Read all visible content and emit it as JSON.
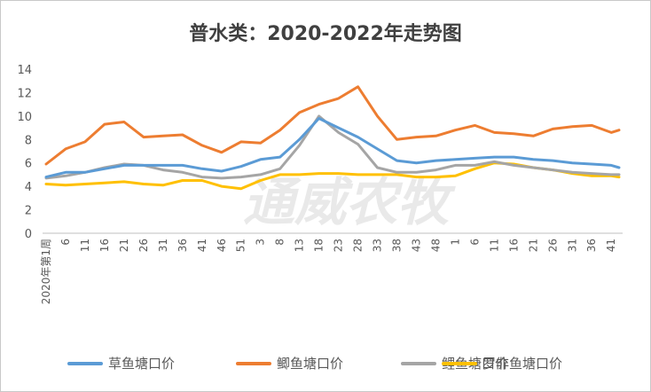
{
  "chart_data": {
    "type": "line",
    "title": "普水类：2020-2022年走势图",
    "xlabel": "",
    "ylabel": "",
    "ylim": [
      0,
      14
    ],
    "yticks": [
      0,
      2,
      4,
      6,
      8,
      10,
      12,
      14
    ],
    "grid": false,
    "legend_position": "bottom",
    "x_tick_labels": [
      "2020年第1周",
      "6",
      "11",
      "16",
      "21",
      "26",
      "31",
      "36",
      "41",
      "46",
      "51",
      "3",
      "8",
      "13",
      "18",
      "23",
      "28",
      "33",
      "38",
      "43",
      "48",
      "1",
      "6",
      "11",
      "16",
      "21",
      "26",
      "31",
      "36",
      "41"
    ],
    "x": [
      0,
      5,
      10,
      15,
      20,
      25,
      30,
      35,
      40,
      45,
      50,
      55,
      60,
      65,
      70,
      75,
      80,
      85,
      90,
      95,
      100,
      105,
      110,
      115,
      120,
      125,
      130,
      135,
      140,
      145,
      147
    ],
    "watermark": "通威农牧",
    "series": [
      {
        "name": "草鱼塘口价",
        "color": "#5b9bd5",
        "values": [
          4.8,
          5.2,
          5.2,
          5.5,
          5.8,
          5.8,
          5.8,
          5.8,
          5.5,
          5.3,
          5.7,
          6.3,
          6.5,
          8.0,
          9.8,
          9.0,
          8.2,
          7.2,
          6.2,
          6.0,
          6.2,
          6.3,
          6.4,
          6.5,
          6.5,
          6.3,
          6.2,
          6.0,
          5.9,
          5.8,
          5.6
        ]
      },
      {
        "name": "鲫鱼塘口价",
        "color": "#ed7d31",
        "values": [
          5.9,
          7.2,
          7.8,
          9.3,
          9.5,
          8.2,
          8.3,
          8.4,
          7.5,
          6.9,
          7.8,
          7.7,
          8.8,
          10.3,
          11.0,
          11.5,
          12.5,
          10.0,
          8.0,
          8.2,
          8.3,
          8.8,
          9.2,
          8.6,
          8.5,
          8.3,
          8.9,
          9.1,
          9.2,
          8.6,
          8.8
        ]
      },
      {
        "name": "鲤鱼塘口价",
        "color": "#a5a5a5",
        "values": [
          4.7,
          4.9,
          5.2,
          5.6,
          5.9,
          5.8,
          5.4,
          5.2,
          4.8,
          4.7,
          4.8,
          5.0,
          5.5,
          7.5,
          10.0,
          8.6,
          7.6,
          5.6,
          5.2,
          5.2,
          5.4,
          5.8,
          5.8,
          6.1,
          5.8,
          5.6,
          5.4,
          5.2,
          5.1,
          5.0,
          5.0
        ]
      },
      {
        "name": "罗非鱼塘口价",
        "color": "#ffc000",
        "values": [
          4.2,
          4.1,
          4.2,
          4.3,
          4.4,
          4.2,
          4.1,
          4.5,
          4.5,
          4.0,
          3.8,
          4.5,
          5.0,
          5.0,
          5.1,
          5.1,
          5.0,
          5.0,
          5.0,
          4.8,
          4.8,
          4.9,
          5.5,
          6.0,
          5.9,
          5.6,
          5.4,
          5.1,
          4.9,
          4.9,
          4.8
        ]
      }
    ]
  }
}
